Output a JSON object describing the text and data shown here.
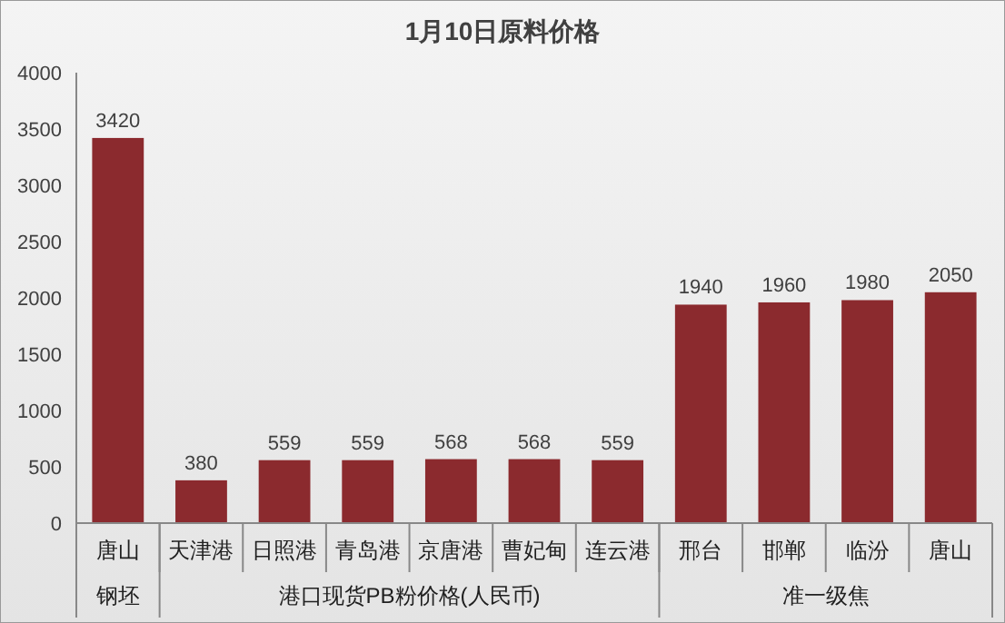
{
  "chart_data": {
    "type": "bar",
    "title": "1月10日原料价格",
    "categories": [
      "唐山",
      "天津港",
      "日照港",
      "青岛港",
      "京唐港",
      "曹妃甸",
      "连云港",
      "邢台",
      "邯郸",
      "临汾",
      "唐山"
    ],
    "values": [
      3420,
      380,
      559,
      559,
      568,
      568,
      559,
      1940,
      1960,
      1980,
      2050
    ],
    "color": "#8b2a2e",
    "data_labels": true,
    "grid": false,
    "ylim": [
      0,
      4000
    ],
    "yticks": [
      0,
      500,
      1000,
      1500,
      2000,
      2500,
      3000,
      3500,
      4000
    ],
    "annotations": [
      "钢坯",
      "港口现货PB粉价格(人民币)",
      "准一级焦"
    ]
  }
}
